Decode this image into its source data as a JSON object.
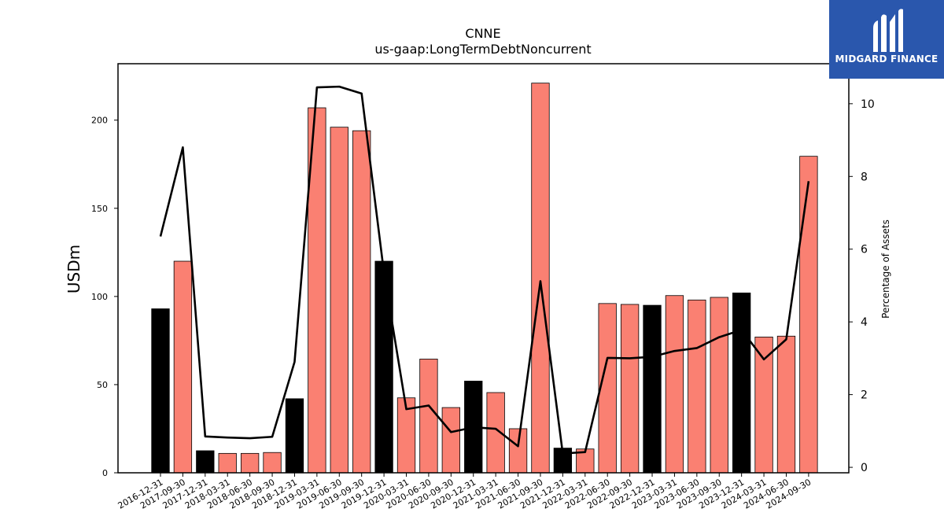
{
  "brand": {
    "name": "MIDGARD FINANCE",
    "background": "#2a57ad",
    "logo_icon": "midgard-m-logo-icon"
  },
  "chart_data": {
    "type": "bar",
    "title": "CNNE",
    "subtitle": "us-gaap:LongTermDebtNoncurrent",
    "ylabel": "USDm",
    "y2label": "Percentage of Assets",
    "ylim": [
      0,
      232
    ],
    "y2lim": [
      -0.15,
      11.1
    ],
    "yticks": [
      0,
      50,
      100,
      150,
      200
    ],
    "y2ticks": [
      0,
      2,
      4,
      6,
      8,
      10
    ],
    "bar_color_quarter": "#fa8072",
    "bar_color_fiscal_year_end": "#000000",
    "line_color": "#000000",
    "categories": [
      "2016-12-31",
      "2017-09-30",
      "2017-12-31",
      "2018-03-31",
      "2018-06-30",
      "2018-09-30",
      "2018-12-31",
      "2019-03-31",
      "2019-06-30",
      "2019-09-30",
      "2019-12-31",
      "2020-03-31",
      "2020-06-30",
      "2020-09-30",
      "2020-12-31",
      "2021-03-31",
      "2021-06-30",
      "2021-09-30",
      "2021-12-31",
      "2022-03-31",
      "2022-06-30",
      "2022-09-30",
      "2022-12-31",
      "2023-03-31",
      "2023-06-30",
      "2023-09-30",
      "2023-12-31",
      "2024-03-31",
      "2024-06-30",
      "2024-09-30"
    ],
    "series": [
      {
        "values": [
          93,
          120,
          12.5,
          11,
          11,
          11.5,
          42,
          207,
          196,
          194,
          120,
          42.5,
          64.5,
          37,
          52,
          45.5,
          25,
          221,
          14,
          13.5,
          96,
          95.5,
          95,
          100.5,
          98,
          99.5,
          102,
          77,
          77.5,
          179.5
        ],
        "highlight": [
          true,
          false,
          true,
          false,
          false,
          false,
          true,
          false,
          false,
          false,
          true,
          false,
          false,
          false,
          true,
          false,
          false,
          false,
          true,
          false,
          false,
          false,
          true,
          false,
          false,
          false,
          true,
          false,
          false,
          false
        ]
      },
      {
        "values": [
          6.35,
          8.8,
          0.85,
          0.82,
          0.8,
          0.84,
          2.9,
          10.45,
          10.47,
          10.28,
          5.35,
          1.6,
          1.7,
          0.97,
          1.1,
          1.06,
          0.58,
          5.12,
          0.38,
          0.42,
          3.01,
          3.0,
          3.04,
          3.2,
          3.28,
          3.58,
          3.78,
          2.97,
          3.52,
          7.87
        ]
      }
    ]
  }
}
